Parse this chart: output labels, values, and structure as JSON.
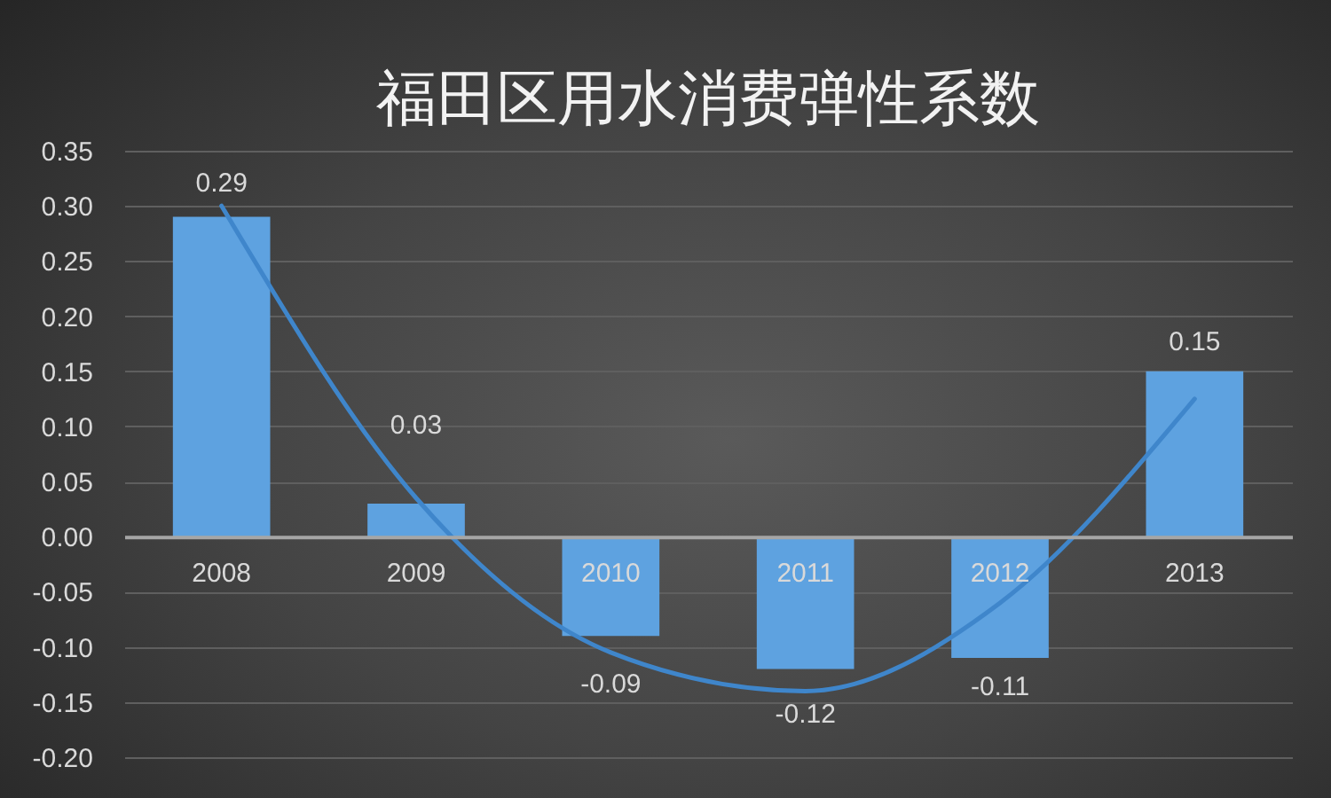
{
  "chart_data": {
    "type": "bar",
    "title": "福田区用水消费弹性系数",
    "categories": [
      "2008",
      "2009",
      "2010",
      "2011",
      "2012",
      "2013"
    ],
    "series": [
      {
        "color": "#5ea2e0",
        "values": [
          0.29,
          0.03,
          -0.09,
          -0.12,
          -0.11,
          0.15
        ],
        "value_labels": [
          "0.29",
          "0.03",
          "-0.09",
          "-0.12",
          "-0.11",
          "0.15"
        ]
      },
      {
        "type": "line",
        "color": "#3f86cb",
        "values": [
          0.3,
          0.035,
          -0.105,
          -0.14,
          -0.06,
          0.125
        ]
      }
    ],
    "ylim": [
      -0.2,
      0.35
    ],
    "yticks": [
      {
        "value": -0.2,
        "label": "-0.20"
      },
      -0.15,
      {
        "value": -0.1,
        "label": "-0.10"
      },
      -0.05,
      {
        "value": 0,
        "label": "0.00"
      },
      0.05,
      {
        "value": 0.1,
        "label": "0.10"
      },
      0.15,
      {
        "value": 0.2,
        "label": "0.20"
      },
      0.25,
      {
        "value": 0.3,
        "label": "0.30"
      },
      0.35
    ],
    "grid": "y"
  }
}
